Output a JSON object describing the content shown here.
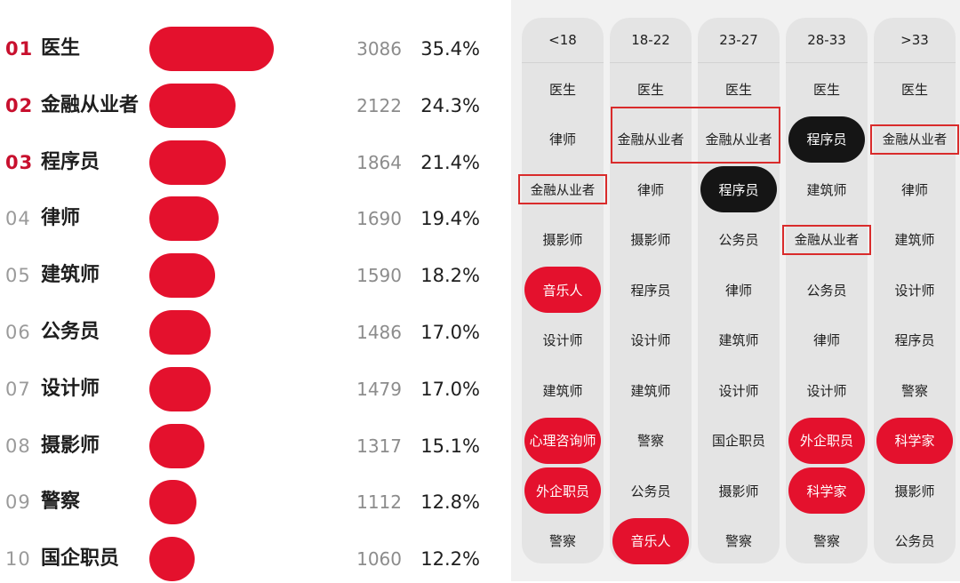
{
  "ranking": [
    {
      "rank": "01",
      "name": "医生",
      "count": 3086,
      "pct": "35.4%",
      "top": true
    },
    {
      "rank": "02",
      "name": "金融从业者",
      "count": 2122,
      "pct": "24.3%",
      "top": true
    },
    {
      "rank": "03",
      "name": "程序员",
      "count": 1864,
      "pct": "21.4%",
      "top": true
    },
    {
      "rank": "04",
      "name": "律师",
      "count": 1690,
      "pct": "19.4%",
      "top": false
    },
    {
      "rank": "05",
      "name": "建筑师",
      "count": 1590,
      "pct": "18.2%",
      "top": false
    },
    {
      "rank": "06",
      "name": "公务员",
      "count": 1486,
      "pct": "17.0%",
      "top": false
    },
    {
      "rank": "07",
      "name": "设计师",
      "count": 1479,
      "pct": "17.0%",
      "top": false
    },
    {
      "rank": "08",
      "name": "摄影师",
      "count": 1317,
      "pct": "15.1%",
      "top": false
    },
    {
      "rank": "09",
      "name": "警察",
      "count": 1112,
      "pct": "12.8%",
      "top": false
    },
    {
      "rank": "10",
      "name": "国企职员",
      "count": 1060,
      "pct": "12.2%",
      "top": false
    }
  ],
  "chart_data": {
    "type": "bar",
    "categories": [
      "医生",
      "金融从业者",
      "程序员",
      "律师",
      "建筑师",
      "公务员",
      "设计师",
      "摄影师",
      "警察",
      "国企职员"
    ],
    "values": [
      3086,
      2122,
      1864,
      1690,
      1590,
      1486,
      1479,
      1317,
      1112,
      1060
    ],
    "percent_labels": [
      "35.4%",
      "24.3%",
      "21.4%",
      "19.4%",
      "18.2%",
      "17.0%",
      "17.0%",
      "15.1%",
      "12.8%",
      "12.2%"
    ],
    "orientation": "horizontal",
    "bar_color": "#e4112d"
  },
  "age_groups": [
    {
      "label": "<18",
      "items": [
        {
          "text": "医生"
        },
        {
          "text": "律师"
        },
        {
          "text": "金融从业者",
          "style": "boxed"
        },
        {
          "text": "摄影师"
        },
        {
          "text": "音乐人",
          "style": "red"
        },
        {
          "text": "设计师"
        },
        {
          "text": "建筑师"
        },
        {
          "text": "心理咨询师",
          "style": "red"
        },
        {
          "text": "外企职员",
          "style": "red"
        },
        {
          "text": "警察"
        }
      ]
    },
    {
      "label": "18-22",
      "items": [
        {
          "text": "医生"
        },
        {
          "text": "金融从业者"
        },
        {
          "text": "律师"
        },
        {
          "text": "摄影师"
        },
        {
          "text": "程序员"
        },
        {
          "text": "设计师"
        },
        {
          "text": "建筑师"
        },
        {
          "text": "警察"
        },
        {
          "text": "公务员"
        },
        {
          "text": "音乐人",
          "style": "red"
        }
      ]
    },
    {
      "label": "23-27",
      "items": [
        {
          "text": "医生"
        },
        {
          "text": "金融从业者"
        },
        {
          "text": "程序员",
          "style": "black"
        },
        {
          "text": "公务员"
        },
        {
          "text": "律师"
        },
        {
          "text": "建筑师"
        },
        {
          "text": "设计师"
        },
        {
          "text": "国企职员"
        },
        {
          "text": "摄影师"
        },
        {
          "text": "警察"
        }
      ]
    },
    {
      "label": "28-33",
      "items": [
        {
          "text": "医生"
        },
        {
          "text": "程序员",
          "style": "black"
        },
        {
          "text": "建筑师"
        },
        {
          "text": "金融从业者",
          "style": "boxed"
        },
        {
          "text": "公务员"
        },
        {
          "text": "律师"
        },
        {
          "text": "设计师"
        },
        {
          "text": "外企职员",
          "style": "red"
        },
        {
          "text": "科学家",
          "style": "red"
        },
        {
          "text": "警察"
        }
      ]
    },
    {
      "label": ">33",
      "items": [
        {
          "text": "医生"
        },
        {
          "text": "金融从业者",
          "style": "boxed"
        },
        {
          "text": "律师"
        },
        {
          "text": "建筑师"
        },
        {
          "text": "设计师"
        },
        {
          "text": "程序员"
        },
        {
          "text": "警察"
        },
        {
          "text": "科学家",
          "style": "red"
        },
        {
          "text": "摄影师"
        },
        {
          "text": "公务员"
        }
      ]
    }
  ],
  "colors": {
    "accent_red": "#e4112d",
    "highlight_black": "#151515",
    "outline_red": "#d92b2b"
  }
}
